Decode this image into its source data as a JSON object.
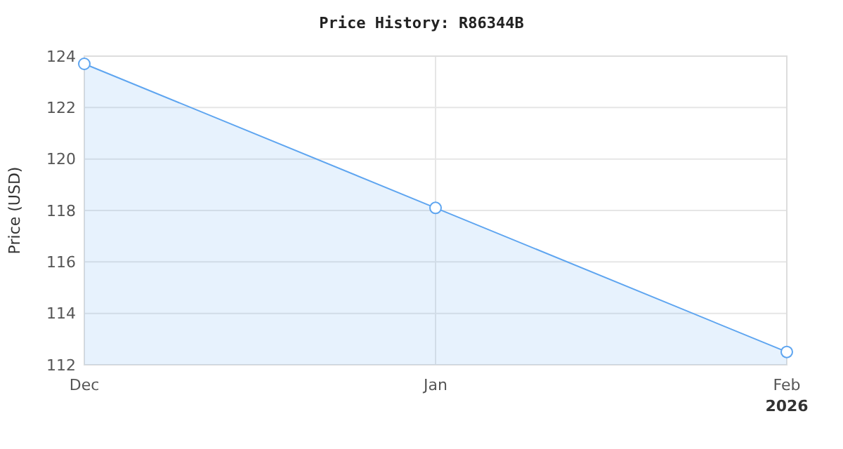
{
  "chart_data": {
    "type": "area",
    "title": "Price History: R86344B",
    "ylabel": "Price (USD)",
    "x": [
      "2025-12",
      "2026-01",
      "2026-02"
    ],
    "series": [
      {
        "color": "#5ea5f0",
        "values": [
          123.7,
          118.1,
          112.5
        ]
      }
    ],
    "xlim": [
      "2025-12",
      "2026-02"
    ],
    "xticks": [
      {
        "value": "2025-12",
        "label": "Dec"
      },
      {
        "value": "2026-01",
        "label": "Jan"
      },
      {
        "value": "2026-02",
        "label": "Feb\n2026"
      }
    ],
    "ylim": [
      112,
      124
    ],
    "yticks": [
      112,
      114,
      116,
      118,
      120,
      122,
      124
    ],
    "grid": true,
    "marker": "circle",
    "line_style": "solid"
  }
}
